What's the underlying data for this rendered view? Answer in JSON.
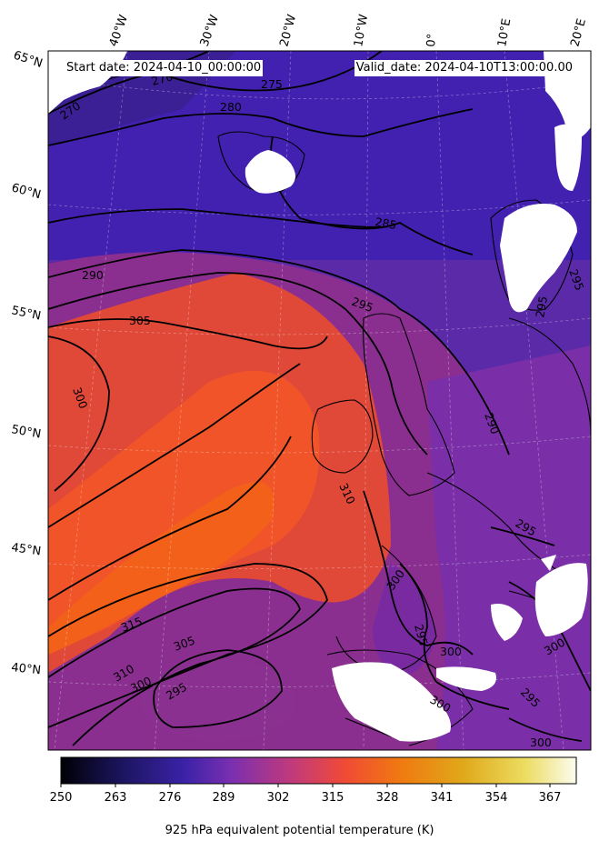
{
  "header": {
    "start_date": "Start date: 2024-04-10_00:00:00",
    "valid_date": "Valid_date: 2024-04-10T13:00:00.00"
  },
  "colors": {
    "cold": "#3a1f8f",
    "mid": "#7a2f9a",
    "warm": "#e04a3c",
    "hot": "#f05a20",
    "land_mask": "#ffffff"
  },
  "lon_labels": [
    "40°W",
    "30°W",
    "20°W",
    "10°W",
    "0°",
    "10°E",
    "20°E"
  ],
  "lat_labels": [
    "65°N",
    "60°N",
    "55°N",
    "50°N",
    "45°N",
    "40°N"
  ],
  "contour_labels": [
    "270",
    "270",
    "275",
    "280",
    "285",
    "290",
    "295",
    "295",
    "295",
    "305",
    "300",
    "310",
    "290",
    "295",
    "300",
    "295",
    "300",
    "300",
    "295",
    "300",
    "315",
    "310",
    "305",
    "300",
    "295",
    "300"
  ],
  "colorbar": {
    "label": "925 hPa equivalent potential temperature (K)",
    "ticks": [
      "250",
      "263",
      "276",
      "289",
      "302",
      "315",
      "328",
      "341",
      "354",
      "367"
    ],
    "min": 250,
    "max": 373
  }
}
